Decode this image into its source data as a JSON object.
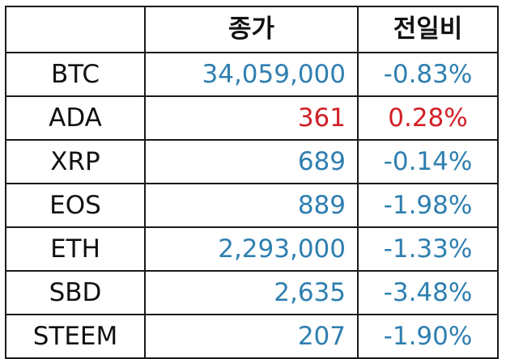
{
  "table": {
    "headers": {
      "name": "",
      "price": "종가",
      "change": "전일비"
    },
    "colors": {
      "down": "#2f7fb0",
      "up": "#d21f26"
    },
    "rows": [
      {
        "name": "BTC",
        "price": "34,059,000",
        "change": "-0.83%",
        "direction": "down"
      },
      {
        "name": "ADA",
        "price": "361",
        "change": "0.28%",
        "direction": "up"
      },
      {
        "name": "XRP",
        "price": "689",
        "change": "-0.14%",
        "direction": "down"
      },
      {
        "name": "EOS",
        "price": "889",
        "change": "-1.98%",
        "direction": "down"
      },
      {
        "name": "ETH",
        "price": "2,293,000",
        "change": "-1.33%",
        "direction": "down"
      },
      {
        "name": "SBD",
        "price": "2,635",
        "change": "-3.48%",
        "direction": "down"
      },
      {
        "name": "STEEM",
        "price": "207",
        "change": "-1.90%",
        "direction": "down"
      }
    ]
  }
}
